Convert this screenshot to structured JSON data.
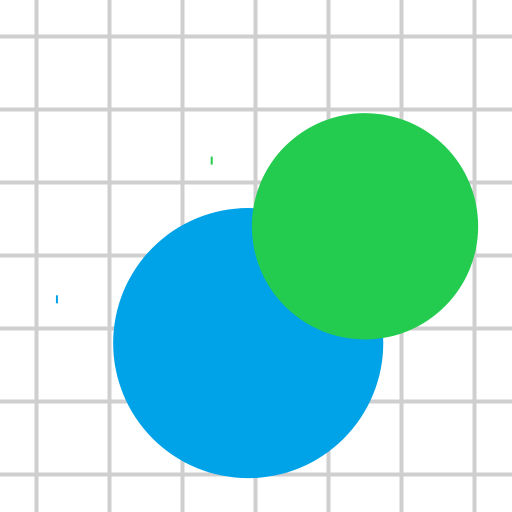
{
  "board": {
    "background_color": "#ffffff",
    "grid_color": "#cfcfcf",
    "grid_columns": 7,
    "grid_rows": 7
  },
  "cells": [
    {
      "name": "blue-player-cell",
      "color": "#00a2e8",
      "col": 2.9,
      "row": 4.2,
      "radius_cells": 1.85
    },
    {
      "name": "green-player-cell",
      "color": "#23cc4f",
      "col": 4.5,
      "row": 2.6,
      "radius_cells": 1.55
    }
  ],
  "pellets": [
    {
      "name": "pellet-green",
      "color": "#23cc4f",
      "col": 2.4,
      "row": 1.7
    },
    {
      "name": "pellet-blue",
      "color": "#00a2e8",
      "col": 0.28,
      "row": 3.6
    }
  ]
}
